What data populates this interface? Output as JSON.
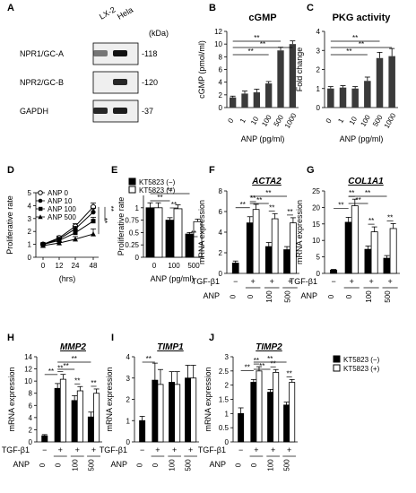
{
  "panel_letters": [
    "A",
    "B",
    "C",
    "D",
    "E",
    "F",
    "G",
    "H",
    "I",
    "J"
  ],
  "western_blot": {
    "lane_labels": [
      "LX-2",
      "Hela"
    ],
    "unit": "(kDa)",
    "rows": [
      {
        "protein": "NPR1/GC-A",
        "kda": "-118",
        "lx2": 0.55,
        "hela": 1.0
      },
      {
        "protein": "NPR2/GC-B",
        "kda": "-120",
        "lx2": 0.0,
        "hela": 0.9
      },
      {
        "protein": "GAPDH",
        "kda": "-37",
        "lx2": 0.9,
        "hela": 0.95
      }
    ]
  },
  "colors": {
    "black_bar": "#000000",
    "white_bar": "#ffffff",
    "grey_bar": "#3a3a3a",
    "axis": "#000000"
  },
  "chart_data": [
    {
      "panel": "B",
      "type": "bar",
      "title": "cGMP",
      "ylabel": "cGMP (pmol/ml)",
      "xlabel": "ANP (pg/ml)",
      "categories": [
        "0",
        "1",
        "10",
        "100",
        "500",
        "1000"
      ],
      "values": [
        1.6,
        2.2,
        2.4,
        3.8,
        9.0,
        10.0
      ],
      "errors": [
        0.2,
        0.4,
        0.5,
        0.3,
        0.5,
        0.5
      ],
      "ylim": [
        0,
        12
      ],
      "yticks": [
        0,
        2,
        4,
        6,
        8,
        10,
        12
      ],
      "significance": [
        {
          "from": 0,
          "to": 3,
          "label": "**"
        },
        {
          "from": 0,
          "to": 4,
          "label": "**"
        },
        {
          "from": 0,
          "to": 5,
          "label": "**"
        }
      ]
    },
    {
      "panel": "C",
      "type": "bar",
      "title": "PKG activity",
      "ylabel": "Fold change",
      "xlabel": "ANP (pg/ml)",
      "categories": [
        "0",
        "1",
        "10",
        "100",
        "500",
        "1000"
      ],
      "values": [
        1.0,
        1.05,
        1.0,
        1.4,
        2.6,
        2.7
      ],
      "errors": [
        0.1,
        0.1,
        0.1,
        0.2,
        0.3,
        0.4
      ],
      "ylim": [
        0,
        4
      ],
      "yticks": [
        0,
        1,
        2,
        3,
        4
      ],
      "significance": [
        {
          "from": 0,
          "to": 3,
          "label": "**"
        },
        {
          "from": 0,
          "to": 4,
          "label": "**"
        },
        {
          "from": 0,
          "to": 5,
          "label": "**"
        }
      ]
    },
    {
      "panel": "D",
      "type": "line",
      "ylabel": "Proliferative rate",
      "xlabel": "(hrs)",
      "x": [
        "0",
        "12",
        "24",
        "48"
      ],
      "ylim": [
        0,
        5
      ],
      "yticks": [
        0,
        1,
        2,
        3,
        4,
        5
      ],
      "series": [
        {
          "name": "ANP 0",
          "marker": "open-circle",
          "values": [
            1.0,
            1.5,
            2.4,
            3.9
          ],
          "errors": [
            0.1,
            0.15,
            0.2,
            0.3
          ]
        },
        {
          "name": "ANP 10",
          "marker": "filled-circle",
          "values": [
            1.0,
            1.4,
            2.2,
            3.5
          ],
          "errors": [
            0.1,
            0.15,
            0.2,
            0.3
          ]
        },
        {
          "name": "ANP 100",
          "marker": "filled-square",
          "values": [
            1.0,
            1.3,
            1.9,
            2.8
          ],
          "errors": [
            0.1,
            0.15,
            0.2,
            0.3
          ]
        },
        {
          "name": "ANP 500",
          "marker": "filled-triangle",
          "values": [
            0.9,
            1.1,
            1.4,
            1.8
          ],
          "errors": [
            0.1,
            0.1,
            0.2,
            0.4
          ]
        }
      ],
      "significance": [
        {
          "label": "**"
        },
        {
          "label": "**"
        }
      ]
    },
    {
      "panel": "E",
      "type": "bar",
      "ylabel": "Proliferative rate",
      "xlabel": "ANP (pg/ml)",
      "categories": [
        "0",
        "100",
        "500"
      ],
      "legend": [
        "KT5823 (−)",
        "KT5823 (+)"
      ],
      "series": [
        {
          "name": "KT5823 (−)",
          "fill": "black",
          "values": [
            1.0,
            0.75,
            0.47
          ],
          "errors": [
            0.1,
            0.05,
            0.03
          ]
        },
        {
          "name": "KT5823 (+)",
          "fill": "white",
          "values": [
            1.0,
            0.98,
            0.72
          ],
          "errors": [
            0.1,
            0.08,
            0.05
          ]
        }
      ],
      "ylim": [
        0,
        1.25
      ],
      "yticks": [
        0,
        0.25,
        0.5,
        0.75,
        1
      ],
      "ytick_labels": [
        "0",
        "0.25",
        "0.5",
        "0.75",
        "1"
      ],
      "significance": [
        {
          "a": [
            0,
            0
          ],
          "b": [
            2,
            0
          ],
          "label": "**"
        },
        {
          "a": [
            0,
            0
          ],
          "b": [
            1,
            0
          ],
          "label": "**"
        },
        {
          "a": [
            1,
            0
          ],
          "b": [
            1,
            1
          ],
          "label": "**"
        },
        {
          "a": [
            2,
            0
          ],
          "b": [
            2,
            1
          ],
          "label": "**"
        }
      ]
    },
    {
      "panel": "F",
      "type": "bar",
      "title": "ACTA2",
      "title_style": "italic-underline",
      "ylabel": "mRNA expression",
      "ylim": [
        0,
        8
      ],
      "yticks": [
        0,
        2,
        4,
        6,
        8
      ],
      "groups": [
        {
          "tgf": "−",
          "anp": "0",
          "bars": [
            {
              "fill": "black",
              "value": 1.0,
              "error": 0.2
            }
          ]
        },
        {
          "tgf": "+",
          "anp": "0",
          "bars": [
            {
              "fill": "black",
              "value": 4.9,
              "error": 0.6
            },
            {
              "fill": "white",
              "value": 6.2,
              "error": 0.5
            }
          ]
        },
        {
          "tgf": "+",
          "anp": "100",
          "bars": [
            {
              "fill": "black",
              "value": 2.6,
              "error": 0.4
            },
            {
              "fill": "white",
              "value": 5.3,
              "error": 0.5
            }
          ]
        },
        {
          "tgf": "+",
          "anp": "500",
          "bars": [
            {
              "fill": "black",
              "value": 2.3,
              "error": 0.3
            },
            {
              "fill": "white",
              "value": 4.9,
              "error": 0.5
            }
          ]
        }
      ],
      "row_labels": [
        "TGF-β1",
        "ANP"
      ],
      "significance": [
        {
          "a": [
            0,
            0
          ],
          "b": [
            1,
            0
          ],
          "label": "**"
        },
        {
          "a": [
            1,
            0
          ],
          "b": [
            2,
            0
          ],
          "label": "**"
        },
        {
          "a": [
            1,
            0
          ],
          "b": [
            3,
            0
          ],
          "label": "**"
        },
        {
          "a": [
            1,
            0
          ],
          "b": [
            1,
            1
          ],
          "label": "**"
        },
        {
          "a": [
            2,
            0
          ],
          "b": [
            2,
            1
          ],
          "label": "**"
        },
        {
          "a": [
            3,
            0
          ],
          "b": [
            3,
            1
          ],
          "label": "**"
        }
      ]
    },
    {
      "panel": "G",
      "type": "bar",
      "title": "COL1A1",
      "title_style": "italic-underline",
      "ylabel": "mRNA expression",
      "ylim": [
        0,
        25
      ],
      "yticks": [
        0,
        5,
        10,
        15,
        20,
        25
      ],
      "groups": [
        {
          "tgf": "−",
          "anp": "0",
          "bars": [
            {
              "fill": "black",
              "value": 1.0,
              "error": 0.2
            }
          ]
        },
        {
          "tgf": "+",
          "anp": "0",
          "bars": [
            {
              "fill": "black",
              "value": 15.5,
              "error": 1.5
            },
            {
              "fill": "white",
              "value": 20.5,
              "error": 2.0
            }
          ]
        },
        {
          "tgf": "+",
          "anp": "100",
          "bars": [
            {
              "fill": "black",
              "value": 7.3,
              "error": 1.0
            },
            {
              "fill": "white",
              "value": 12.6,
              "error": 1.5
            }
          ]
        },
        {
          "tgf": "+",
          "anp": "500",
          "bars": [
            {
              "fill": "black",
              "value": 4.6,
              "error": 0.8
            },
            {
              "fill": "white",
              "value": 13.6,
              "error": 1.5
            }
          ]
        }
      ],
      "row_labels": [
        "TGF-β1",
        "ANP"
      ],
      "significance": [
        {
          "a": [
            0,
            0
          ],
          "b": [
            1,
            0
          ],
          "label": "**"
        },
        {
          "a": [
            1,
            0
          ],
          "b": [
            2,
            0
          ],
          "label": "**"
        },
        {
          "a": [
            1,
            0
          ],
          "b": [
            3,
            0
          ],
          "label": "**"
        },
        {
          "a": [
            1,
            0
          ],
          "b": [
            1,
            1
          ],
          "label": "**"
        },
        {
          "a": [
            2,
            0
          ],
          "b": [
            2,
            1
          ],
          "label": "**"
        },
        {
          "a": [
            3,
            0
          ],
          "b": [
            3,
            1
          ],
          "label": "**"
        }
      ]
    },
    {
      "panel": "H",
      "type": "bar",
      "title": "MMP2",
      "title_style": "italic-underline",
      "ylabel": "mRNA expression",
      "ylim": [
        0,
        14
      ],
      "yticks": [
        0,
        2,
        4,
        6,
        8,
        10,
        12,
        14
      ],
      "groups": [
        {
          "tgf": "−",
          "anp": "0",
          "bars": [
            {
              "fill": "black",
              "value": 1.0,
              "error": 0.2
            }
          ]
        },
        {
          "tgf": "+",
          "anp": "0",
          "bars": [
            {
              "fill": "black",
              "value": 8.8,
              "error": 0.8
            },
            {
              "fill": "white",
              "value": 10.3,
              "error": 0.8
            }
          ]
        },
        {
          "tgf": "+",
          "anp": "100",
          "bars": [
            {
              "fill": "black",
              "value": 6.8,
              "error": 0.8
            },
            {
              "fill": "white",
              "value": 8.4,
              "error": 0.7
            }
          ]
        },
        {
          "tgf": "+",
          "anp": "500",
          "bars": [
            {
              "fill": "black",
              "value": 4.1,
              "error": 0.8
            },
            {
              "fill": "white",
              "value": 8.0,
              "error": 0.7
            }
          ]
        }
      ],
      "row_labels": [
        "TGF-β1",
        "ANP"
      ],
      "significance": [
        {
          "a": [
            0,
            0
          ],
          "b": [
            1,
            0
          ],
          "label": "**"
        },
        {
          "a": [
            1,
            0
          ],
          "b": [
            2,
            0
          ],
          "label": "**"
        },
        {
          "a": [
            1,
            0
          ],
          "b": [
            3,
            0
          ],
          "label": "**"
        },
        {
          "a": [
            1,
            0
          ],
          "b": [
            1,
            1
          ],
          "label": "**"
        },
        {
          "a": [
            2,
            0
          ],
          "b": [
            2,
            1
          ],
          "label": "**"
        },
        {
          "a": [
            3,
            0
          ],
          "b": [
            3,
            1
          ],
          "label": "**"
        }
      ]
    },
    {
      "panel": "I",
      "type": "bar",
      "title": "TIMP1",
      "title_style": "italic-underline",
      "ylabel": "mRNA expression",
      "ylim": [
        0,
        4
      ],
      "yticks": [
        0,
        1,
        2,
        3,
        4
      ],
      "groups": [
        {
          "tgf": "−",
          "anp": "0",
          "bars": [
            {
              "fill": "black",
              "value": 1.0,
              "error": 0.2
            }
          ]
        },
        {
          "tgf": "+",
          "anp": "0",
          "bars": [
            {
              "fill": "black",
              "value": 2.9,
              "error": 0.8
            },
            {
              "fill": "white",
              "value": 2.7,
              "error": 0.7
            }
          ]
        },
        {
          "tgf": "+",
          "anp": "100",
          "bars": [
            {
              "fill": "black",
              "value": 2.8,
              "error": 0.5
            },
            {
              "fill": "white",
              "value": 2.7,
              "error": 0.6
            }
          ]
        },
        {
          "tgf": "+",
          "anp": "500",
          "bars": [
            {
              "fill": "black",
              "value": 3.0,
              "error": 0.6
            },
            {
              "fill": "white",
              "value": 3.0,
              "error": 0.6
            }
          ]
        }
      ],
      "row_labels": [
        "TGF-β1",
        "ANP"
      ],
      "significance": [
        {
          "a": [
            0,
            0
          ],
          "b": [
            1,
            0
          ],
          "label": "**"
        }
      ]
    },
    {
      "panel": "J",
      "type": "bar",
      "title": "TIMP2",
      "title_style": "italic-underline",
      "ylabel": "mRNA expression",
      "ylim": [
        0,
        3
      ],
      "yticks": [
        0,
        0.5,
        1,
        1.5,
        2,
        2.5,
        3
      ],
      "ytick_labels": [
        "0",
        "0.5",
        "1",
        "1.5",
        "2",
        "2.5",
        "3"
      ],
      "legend": [
        "KT5823 (−)",
        "KT5823 (+)"
      ],
      "groups": [
        {
          "tgf": "−",
          "anp": "0",
          "bars": [
            {
              "fill": "black",
              "value": 1.0,
              "error": 0.2
            }
          ]
        },
        {
          "tgf": "+",
          "anp": "0",
          "bars": [
            {
              "fill": "black",
              "value": 2.1,
              "error": 0.1
            },
            {
              "fill": "white",
              "value": 2.5,
              "error": 0.15
            }
          ]
        },
        {
          "tgf": "+",
          "anp": "100",
          "bars": [
            {
              "fill": "black",
              "value": 1.75,
              "error": 0.1
            },
            {
              "fill": "white",
              "value": 2.45,
              "error": 0.1
            }
          ]
        },
        {
          "tgf": "+",
          "anp": "500",
          "bars": [
            {
              "fill": "black",
              "value": 1.3,
              "error": 0.1
            },
            {
              "fill": "white",
              "value": 2.1,
              "error": 0.1
            }
          ]
        }
      ],
      "row_labels": [
        "TGF-β1",
        "ANP"
      ],
      "significance": [
        {
          "a": [
            0,
            0
          ],
          "b": [
            1,
            0
          ],
          "label": "**"
        },
        {
          "a": [
            1,
            0
          ],
          "b": [
            2,
            0
          ],
          "label": "**"
        },
        {
          "a": [
            1,
            0
          ],
          "b": [
            3,
            0
          ],
          "label": "**"
        },
        {
          "a": [
            1,
            0
          ],
          "b": [
            1,
            1
          ],
          "label": "**"
        },
        {
          "a": [
            2,
            0
          ],
          "b": [
            2,
            1
          ],
          "label": "**"
        },
        {
          "a": [
            3,
            0
          ],
          "b": [
            3,
            1
          ],
          "label": "**"
        }
      ]
    }
  ]
}
